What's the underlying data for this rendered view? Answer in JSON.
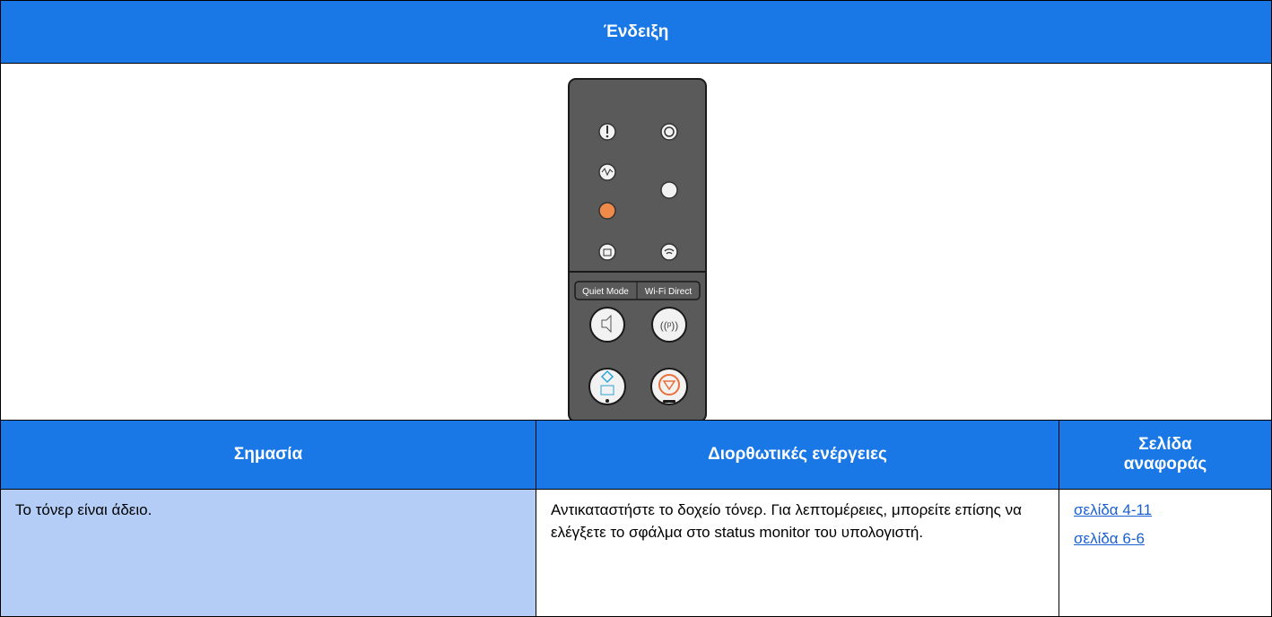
{
  "header": {
    "title": "Ένδειξη"
  },
  "panel": {
    "labels": [
      "Quiet Mode",
      "Wi-Fi Direct"
    ]
  },
  "table": {
    "columns": [
      "Σημασία",
      "Διορθωτικές ενέργειες",
      "Σελίδα αναφοράς"
    ],
    "rows": [
      [
        "Το τόνερ είναι άδειο.",
        "Αντικαταστήστε το δοχείο τόνερ.  Για λεπτομέρειες, μπορείτε επίσης να ελέγξετε το σφάλμα στο status monitor του υπολογιστή.",
        [
          "σελίδα 4-11",
          "σελίδα 6-6"
        ]
      ]
    ]
  }
}
